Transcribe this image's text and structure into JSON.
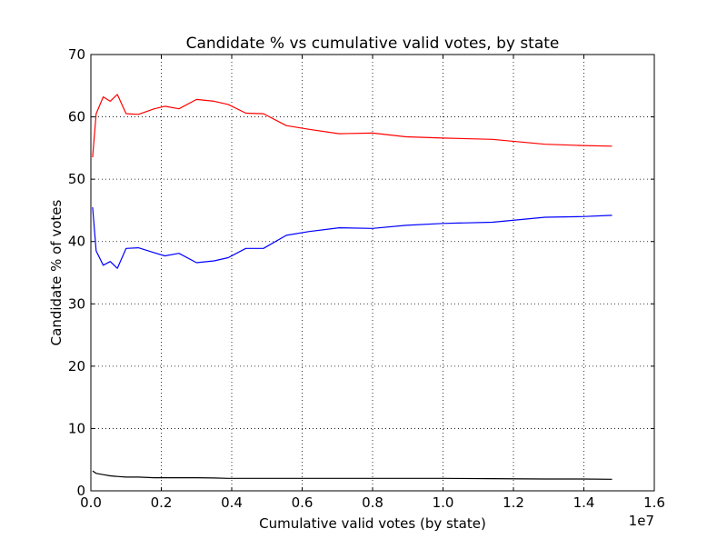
{
  "chart_data": {
    "type": "line",
    "title": "Candidate % vs cumulative valid votes, by state",
    "xlabel": "Cumulative valid votes (by state)",
    "ylabel": "Candidate % of votes",
    "x_offset_label": "1e7",
    "xlim": [
      0,
      1.6
    ],
    "ylim": [
      0,
      70
    ],
    "x_ticks": [
      0.0,
      0.2,
      0.4,
      0.6,
      0.8,
      1.0,
      1.2,
      1.4,
      1.6
    ],
    "x_tick_labels": [
      "0.0",
      "0.2",
      "0.4",
      "0.6",
      "0.8",
      "1.0",
      "1.2",
      "1.4",
      "1.6"
    ],
    "y_ticks": [
      0,
      10,
      20,
      30,
      40,
      50,
      60,
      70
    ],
    "y_tick_labels": [
      "0",
      "10",
      "20",
      "30",
      "40",
      "50",
      "60",
      "70"
    ],
    "grid": true,
    "grid_style": "dotted",
    "legend": "none",
    "series": [
      {
        "color": "#ff0000",
        "x": [
          0.005,
          0.015,
          0.035,
          0.055,
          0.075,
          0.1,
          0.135,
          0.18,
          0.21,
          0.25,
          0.3,
          0.35,
          0.39,
          0.44,
          0.49,
          0.555,
          0.62,
          0.705,
          0.8,
          0.895,
          1.0,
          1.14,
          1.29,
          1.395,
          1.48
        ],
        "y": [
          53.5,
          60.5,
          63.2,
          62.5,
          63.6,
          60.5,
          60.4,
          61.3,
          61.7,
          61.3,
          62.8,
          62.5,
          62.0,
          60.6,
          60.5,
          58.6,
          58.0,
          57.3,
          57.4,
          56.8,
          56.6,
          56.4,
          55.6,
          55.4,
          55.3
        ]
      },
      {
        "color": "#0000ff",
        "x": [
          0.005,
          0.015,
          0.035,
          0.055,
          0.075,
          0.1,
          0.135,
          0.18,
          0.21,
          0.25,
          0.3,
          0.35,
          0.39,
          0.44,
          0.49,
          0.555,
          0.62,
          0.705,
          0.8,
          0.895,
          1.0,
          1.14,
          1.29,
          1.395,
          1.48
        ],
        "y": [
          45.5,
          38.5,
          36.2,
          36.8,
          35.7,
          38.9,
          39.0,
          38.2,
          37.7,
          38.1,
          36.6,
          36.9,
          37.4,
          38.9,
          38.9,
          41.0,
          41.6,
          42.2,
          42.1,
          42.6,
          42.9,
          43.1,
          43.9,
          44.0,
          44.2
        ]
      },
      {
        "color": "#000000",
        "x": [
          0.005,
          0.015,
          0.035,
          0.055,
          0.075,
          0.1,
          0.135,
          0.18,
          0.21,
          0.25,
          0.3,
          0.35,
          0.39,
          0.44,
          0.49,
          0.555,
          0.62,
          0.705,
          0.8,
          0.895,
          1.0,
          1.14,
          1.29,
          1.395,
          1.48
        ],
        "y": [
          3.2,
          2.8,
          2.6,
          2.4,
          2.3,
          2.2,
          2.2,
          2.1,
          2.1,
          2.1,
          2.1,
          2.05,
          2.0,
          2.0,
          2.0,
          2.0,
          2.0,
          2.0,
          2.0,
          2.0,
          2.0,
          1.95,
          1.9,
          1.9,
          1.85
        ]
      }
    ]
  }
}
